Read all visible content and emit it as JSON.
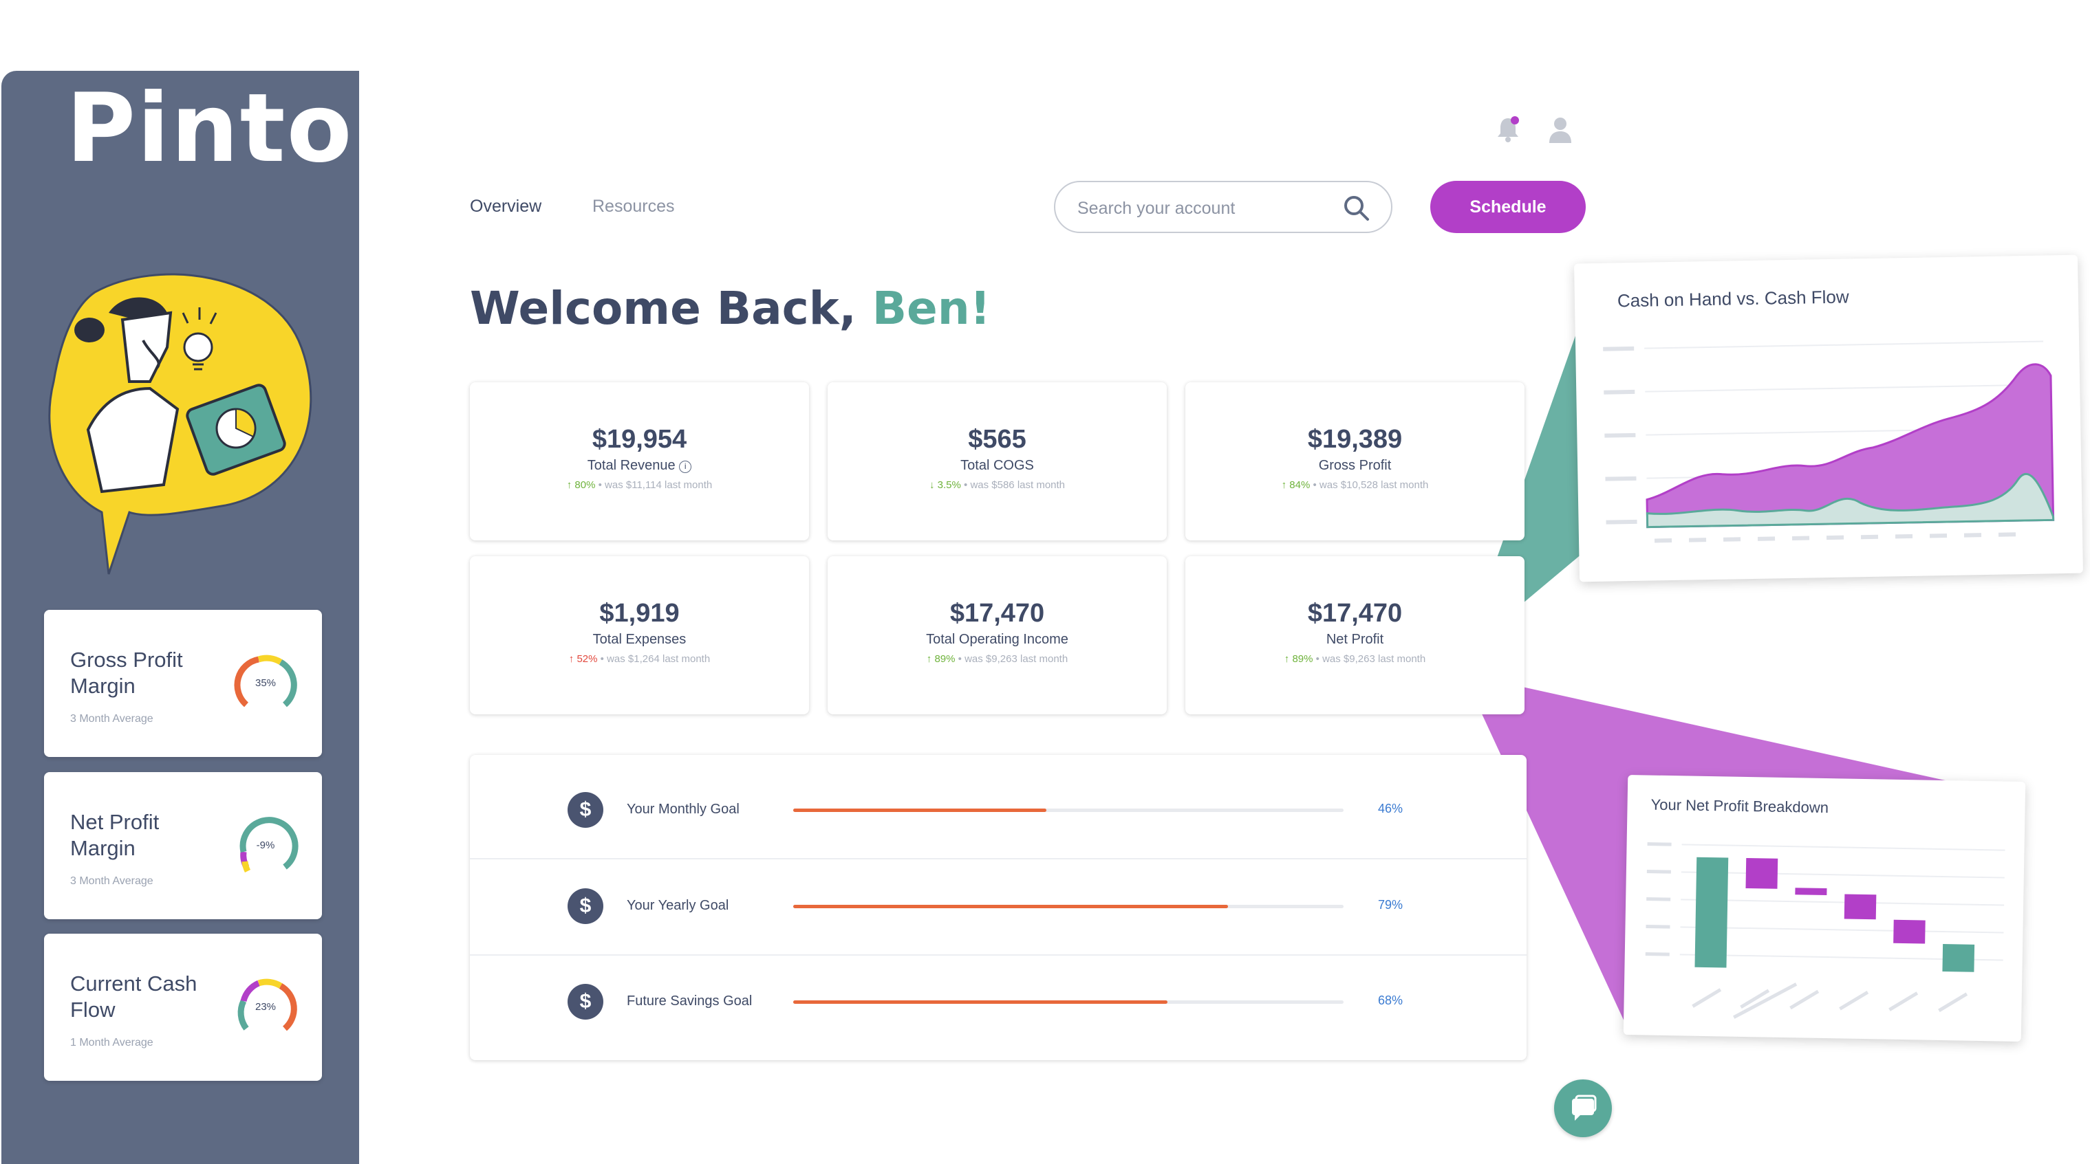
{
  "app": {
    "logo": "Pinto"
  },
  "nav": {
    "tabs": [
      {
        "label": "Overview"
      },
      {
        "label": "Resources"
      }
    ]
  },
  "search": {
    "placeholder": "Search your account"
  },
  "header": {
    "schedule_label": "Schedule"
  },
  "welcome": {
    "prefix": "Welcome Back, ",
    "name": "Ben!"
  },
  "sidebar": {
    "metrics": [
      {
        "title": "Gross Profit Margin",
        "value": "35%",
        "sub": "3 Month Average"
      },
      {
        "title": "Net Profit Margin",
        "value": "-9%",
        "sub": "3 Month Average"
      },
      {
        "title": "Current Cash Flow",
        "value": "23%",
        "sub": "1 Month Average"
      }
    ]
  },
  "stats": [
    {
      "value": "$19,954",
      "label": "Total Revenue",
      "change": "80%",
      "was": "was $11,114 last month",
      "direction": "up"
    },
    {
      "value": "$565",
      "label": "Total COGS",
      "change": "3.5%",
      "was": "was $586 last month",
      "direction": "down"
    },
    {
      "value": "$19,389",
      "label": "Gross Profit",
      "change": "84%",
      "was": "was $10,528 last month",
      "direction": "up"
    },
    {
      "value": "$1,919",
      "label": "Total Expenses",
      "change": "52%",
      "was": "was $1,264 last month",
      "direction": "up-bad"
    },
    {
      "value": "$17,470",
      "label": "Total Operating Income",
      "change": "89%",
      "was": "was $9,263 last month",
      "direction": "up"
    },
    {
      "value": "$17,470",
      "label": "Net Profit",
      "change": "89%",
      "was": "was $9,263 last month",
      "direction": "up"
    }
  ],
  "goals": [
    {
      "label": "Your Monthly Goal",
      "percent": 46,
      "display": "46%"
    },
    {
      "label": "Your Yearly Goal",
      "percent": 79,
      "display": "79%"
    },
    {
      "label": "Future Savings Goal",
      "percent": 68,
      "display": "68%"
    }
  ],
  "cash_chart": {
    "title": "Cash on Hand vs. Cash Flow"
  },
  "profit_chart": {
    "title": "Your Net Profit Breakdown"
  },
  "colors": {
    "sidebar": "#5e6a83",
    "accent": "#b23fc8",
    "teal": "#5aa99a",
    "orange": "#e8683a",
    "text": "#3f4a66"
  },
  "icons": [
    "bell-icon",
    "user-icon",
    "search-icon",
    "info-icon",
    "dollar-icon",
    "chat-icon"
  ]
}
